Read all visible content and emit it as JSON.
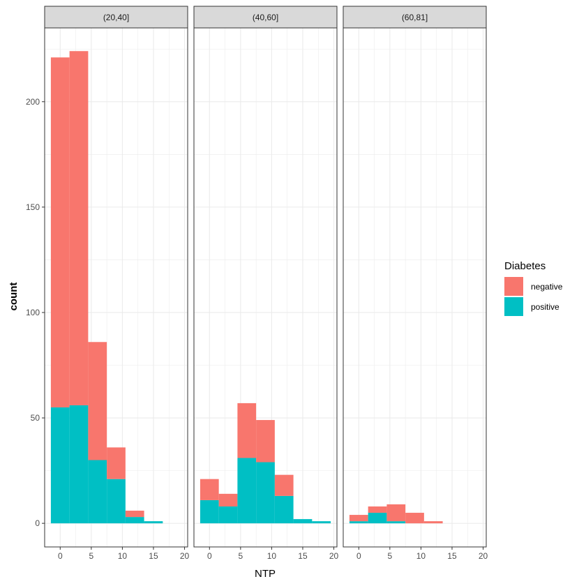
{
  "chart_data": {
    "type": "bar",
    "subtype": "stacked-histogram-faceted",
    "xlabel": "NTP",
    "ylabel": "count",
    "xlim": [
      -2.5,
      20.5
    ],
    "ylim": [
      -11.2,
      235
    ],
    "x_ticks": [
      0,
      5,
      10,
      15,
      20
    ],
    "y_ticks": [
      0,
      50,
      100,
      150,
      200
    ],
    "grid": true,
    "legend": {
      "title": "Diabetes",
      "placement": "right",
      "entries": [
        {
          "name": "negative",
          "color": "#F8766D"
        },
        {
          "name": "positive",
          "color": "#00BFC4"
        }
      ]
    },
    "bin_width": 3,
    "bin_centers": [
      0,
      3,
      6,
      9,
      12,
      15,
      18
    ],
    "facets": [
      {
        "label": "(20,40]",
        "series": [
          {
            "name": "negative",
            "values": [
              166,
              168,
              56,
              15,
              3,
              0,
              0
            ]
          },
          {
            "name": "positive",
            "values": [
              55,
              56,
              30,
              21,
              3,
              1,
              0
            ]
          }
        ]
      },
      {
        "label": "(40,60]",
        "series": [
          {
            "name": "negative",
            "values": [
              10,
              6,
              26,
              20,
              10,
              0,
              0
            ]
          },
          {
            "name": "positive",
            "values": [
              11,
              8,
              31,
              29,
              13,
              2,
              1
            ]
          }
        ]
      },
      {
        "label": "(60,81]",
        "series": [
          {
            "name": "negative",
            "values": [
              3,
              3,
              8,
              5,
              1,
              0,
              0
            ]
          },
          {
            "name": "positive",
            "values": [
              1,
              5,
              1,
              0,
              0,
              0,
              0
            ]
          }
        ]
      }
    ]
  }
}
